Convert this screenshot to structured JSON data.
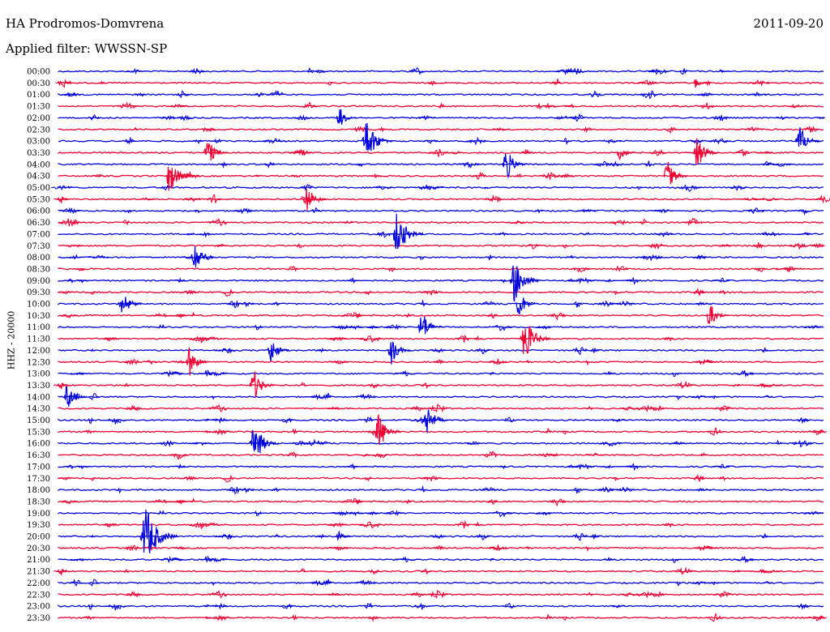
{
  "header": {
    "station": "HA Prodromos-Domvrena",
    "date": "2011-09-20",
    "filter": "Applied filter: WWSSN-SP",
    "channel": "HHZ - 20000"
  },
  "chart_data": {
    "type": "line",
    "title": "HA Prodromos-Domvrena",
    "subtitle": "Applied filter: WWSSN-SP",
    "ylabel": "HHZ - 20000",
    "xlabel": "",
    "rows": [
      "00:00",
      "00:30",
      "01:00",
      "01:30",
      "02:00",
      "02:30",
      "03:00",
      "03:30",
      "04:00",
      "04:30",
      "05:00",
      "05:30",
      "06:00",
      "06:30",
      "07:00",
      "07:30",
      "08:00",
      "08:30",
      "09:00",
      "09:30",
      "10:00",
      "10:30",
      "11:00",
      "11:30",
      "12:00",
      "12:30",
      "13:00",
      "13:30",
      "14:00",
      "14:30",
      "15:00",
      "15:30",
      "16:00",
      "16:30",
      "17:00",
      "17:30",
      "18:00",
      "18:30",
      "19:00",
      "19:30",
      "20:00",
      "20:30",
      "21:00",
      "21:30",
      "22:00",
      "22:30",
      "23:00",
      "23:30"
    ],
    "series_colors": [
      "#0000dd",
      "#ee0033"
    ],
    "x_range_minutes": [
      0,
      30
    ],
    "grid": false,
    "events": [
      {
        "row": "00:00",
        "minute": 26.0,
        "amp": 3
      },
      {
        "row": "00:30",
        "minute": 25.0,
        "amp": 7
      },
      {
        "row": "02:00",
        "minute": 11.0,
        "amp": 15
      },
      {
        "row": "03:00",
        "minute": 12.0,
        "amp": 30
      },
      {
        "row": "03:00",
        "minute": 29.0,
        "amp": 22
      },
      {
        "row": "03:30",
        "minute": 5.8,
        "amp": 20
      },
      {
        "row": "03:30",
        "minute": 22.0,
        "amp": 12
      },
      {
        "row": "03:30",
        "minute": 25.0,
        "amp": 22
      },
      {
        "row": "04:00",
        "minute": 17.5,
        "amp": 22
      },
      {
        "row": "04:30",
        "minute": 4.3,
        "amp": 24
      },
      {
        "row": "04:30",
        "minute": 23.8,
        "amp": 22
      },
      {
        "row": "05:30",
        "minute": 9.7,
        "amp": 20
      },
      {
        "row": "07:00",
        "minute": 13.2,
        "amp": 30
      },
      {
        "row": "08:00",
        "minute": 5.3,
        "amp": 22
      },
      {
        "row": "09:00",
        "minute": 17.8,
        "amp": 30
      },
      {
        "row": "10:00",
        "minute": 2.5,
        "amp": 18
      },
      {
        "row": "10:00",
        "minute": 18.0,
        "amp": 20
      },
      {
        "row": "10:30",
        "minute": 25.5,
        "amp": 18
      },
      {
        "row": "11:00",
        "minute": 14.2,
        "amp": 22
      },
      {
        "row": "11:30",
        "minute": 18.2,
        "amp": 30
      },
      {
        "row": "12:00",
        "minute": 8.3,
        "amp": 18
      },
      {
        "row": "12:00",
        "minute": 13.0,
        "amp": 20
      },
      {
        "row": "12:30",
        "minute": 5.1,
        "amp": 20
      },
      {
        "row": "13:30",
        "minute": 7.6,
        "amp": 22
      },
      {
        "row": "14:00",
        "minute": 0.3,
        "amp": 20
      },
      {
        "row": "15:00",
        "minute": 14.4,
        "amp": 22
      },
      {
        "row": "15:30",
        "minute": 12.5,
        "amp": 25
      },
      {
        "row": "16:00",
        "minute": 7.6,
        "amp": 28
      },
      {
        "row": "20:00",
        "minute": 3.3,
        "amp": 40
      },
      {
        "row": "20:00",
        "minute": 11.0,
        "amp": 8
      }
    ]
  }
}
